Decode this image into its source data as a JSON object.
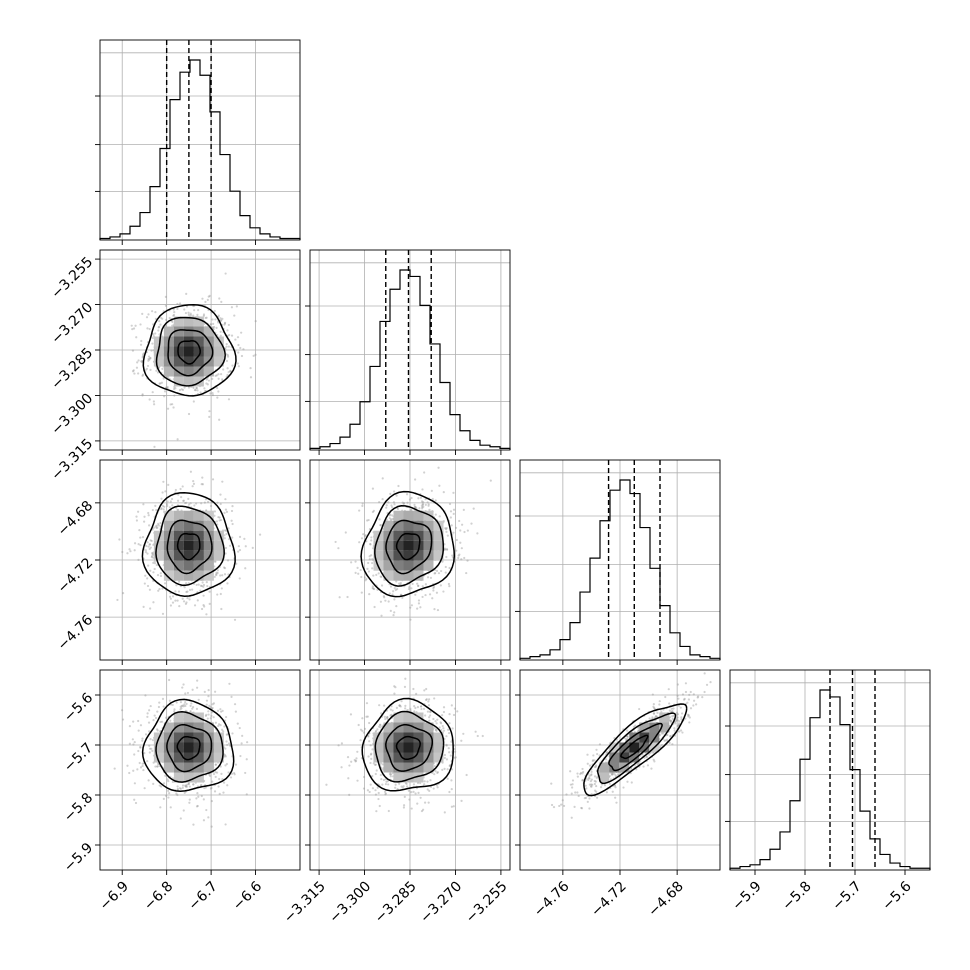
{
  "chart_data": {
    "type": "corner",
    "description_note": "",
    "parameters": [
      {
        "range": [
          -6.95,
          -6.5
        ],
        "ticks": [
          -6.9,
          -6.8,
          -6.7,
          -6.6
        ],
        "tick_labels": [
          "−6.9",
          "−6.8",
          "−6.7",
          "−6.6"
        ],
        "quantiles": [
          -6.8,
          -6.75,
          -6.7
        ],
        "mean": -6.75,
        "sd": 0.05
      },
      {
        "range": [
          -3.318,
          -3.252
        ],
        "ticks": [
          -3.315,
          -3.3,
          -3.285,
          -3.27,
          -3.255
        ],
        "tick_labels": [
          "−3.315",
          "−3.300",
          "−3.285",
          "−3.270",
          "−3.255"
        ],
        "quantiles": [
          -3.293,
          -3.2855,
          -3.278
        ],
        "mean": -3.2855,
        "sd": 0.0075
      },
      {
        "range": [
          -4.79,
          -4.65
        ],
        "ticks": [
          -4.76,
          -4.72,
          -4.68
        ],
        "tick_labels": [
          "−4.76",
          "−4.72",
          "−4.68"
        ],
        "quantiles": [
          -4.728,
          -4.71,
          -4.692
        ],
        "mean": -4.71,
        "sd": 0.018
      },
      {
        "range": [
          -5.95,
          -5.55
        ],
        "ticks": [
          -5.9,
          -5.8,
          -5.7,
          -5.6
        ],
        "tick_labels": [
          "−5.9",
          "−5.8",
          "−5.7",
          "−5.6"
        ],
        "quantiles": [
          -5.75,
          -5.705,
          -5.66
        ],
        "mean": -5.705,
        "sd": 0.045
      }
    ],
    "histograms": [
      {
        "bins": 20,
        "counts": [
          1,
          2,
          4,
          9,
          18,
          35,
          60,
          92,
          110,
          118,
          108,
          84,
          56,
          32,
          16,
          8,
          4,
          2,
          1,
          1
        ]
      },
      {
        "bins": 20,
        "counts": [
          1,
          2,
          4,
          8,
          16,
          30,
          52,
          80,
          100,
          112,
          108,
          90,
          66,
          42,
          22,
          12,
          6,
          3,
          2,
          1
        ]
      },
      {
        "bins": 20,
        "counts": [
          1,
          2,
          3,
          6,
          12,
          22,
          40,
          60,
          82,
          100,
          106,
          98,
          78,
          54,
          32,
          16,
          8,
          3,
          2,
          1
        ]
      },
      {
        "bins": 20,
        "counts": [
          1,
          2,
          3,
          6,
          12,
          22,
          40,
          64,
          88,
          104,
          100,
          84,
          58,
          34,
          18,
          9,
          4,
          2,
          1,
          1
        ]
      }
    ],
    "contour_pairs": [
      {
        "x_param": 0,
        "y_param": 1,
        "center": [
          -6.75,
          -3.2855
        ],
        "correlation": 0.0
      },
      {
        "x_param": 0,
        "y_param": 2,
        "center": [
          -6.75,
          -4.71
        ],
        "correlation": 0.0
      },
      {
        "x_param": 1,
        "y_param": 2,
        "center": [
          -3.2855,
          -4.71
        ],
        "correlation": 0.1
      },
      {
        "x_param": 0,
        "y_param": 3,
        "center": [
          -6.75,
          -5.705
        ],
        "correlation": 0.0
      },
      {
        "x_param": 1,
        "y_param": 3,
        "center": [
          -3.2855,
          -5.705
        ],
        "correlation": 0.05
      },
      {
        "x_param": 2,
        "y_param": 3,
        "center": [
          -4.71,
          -5.705
        ],
        "correlation": 0.85
      }
    ],
    "contour_levels_sigma": [
      0.5,
      1.0,
      1.5,
      2.0
    ],
    "grid": true,
    "legend": "none",
    "title": "",
    "xlabel": "",
    "ylabel": ""
  }
}
